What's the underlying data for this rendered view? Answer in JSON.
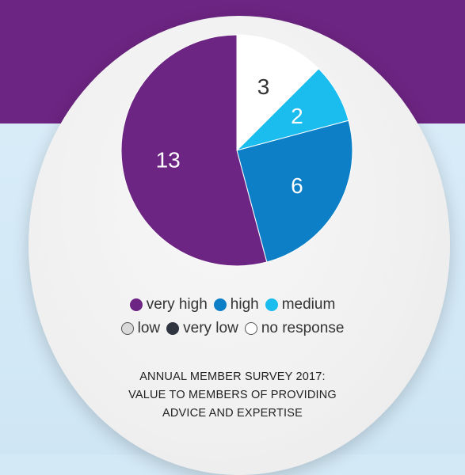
{
  "chart_data": {
    "type": "pie",
    "title": "",
    "slices": [
      {
        "label": "very high",
        "value": 13,
        "color": "#6d2583",
        "text_color": "#ffffff"
      },
      {
        "label": "high",
        "value": 6,
        "color": "#0d7fc6",
        "text_color": "#ffffff"
      },
      {
        "label": "medium",
        "value": 2,
        "color": "#1bbcee",
        "text_color": "#ffffff"
      },
      {
        "label": "low",
        "value": 0,
        "color": "#d9d9d9",
        "text_color": "#333333"
      },
      {
        "label": "very low",
        "value": 0,
        "color": "#2e3440",
        "text_color": "#ffffff"
      },
      {
        "label": "no response",
        "value": 3,
        "color": "#ffffff",
        "text_color": "#333333"
      }
    ]
  },
  "legend": {
    "row1": [
      {
        "label": "very high",
        "color": "#6d2583",
        "outlined": false
      },
      {
        "label": "high",
        "color": "#0d7fc6",
        "outlined": false
      },
      {
        "label": "medium",
        "color": "#1bbcee",
        "outlined": false
      }
    ],
    "row2": [
      {
        "label": "low",
        "color": "#d9d9d9",
        "outlined": true
      },
      {
        "label": "very low",
        "color": "#2e3440",
        "outlined": false
      },
      {
        "label": "no response",
        "color": "#ffffff",
        "outlined": true
      }
    ]
  },
  "caption": {
    "line1": "ANNUAL MEMBER SURVEY 2017:",
    "line2": "VALUE TO MEMBERS OF PROVIDING",
    "line3": "ADVICE AND EXPERTISE"
  }
}
